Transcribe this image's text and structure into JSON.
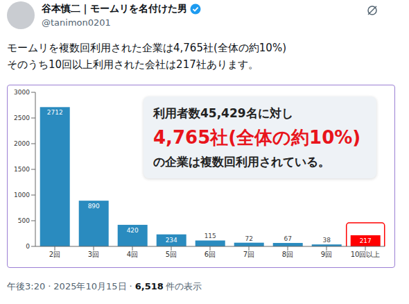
{
  "post": {
    "author": "谷本慎二｜モームリを名付けた男",
    "handle": "@tanimon0201",
    "text": [
      "モームリを複数回利用された企業は4,765社(全体の約10%)",
      "そのうち10回以上利用された会社は217社あります。"
    ]
  },
  "chart_data": {
    "type": "bar",
    "categories": [
      "2回",
      "3回",
      "4回",
      "5回",
      "6回",
      "7回",
      "8回",
      "9回",
      "10回以上"
    ],
    "values": [
      2712,
      890,
      420,
      234,
      115,
      72,
      67,
      38,
      217
    ],
    "colors": [
      "#2a8bbf",
      "#2a8bbf",
      "#2a8bbf",
      "#2a8bbf",
      "#2a8bbf",
      "#2a8bbf",
      "#2a8bbf",
      "#2a8bbf",
      "#ff0000"
    ],
    "ylim": [
      0,
      3000
    ],
    "yticks": [
      0,
      500,
      1000,
      1500,
      2000,
      2500,
      3000
    ],
    "grid": false,
    "data_labels": true,
    "annotations": [
      "利用者数45,429名に対し",
      "4,765社(全体の約10%)",
      "の企業は複数回利用されている。"
    ]
  },
  "footer": {
    "time": "午後3:20",
    "date": "2025年10月15日",
    "views": "6,518",
    "views_label": "件の表示",
    "separator": "·"
  }
}
